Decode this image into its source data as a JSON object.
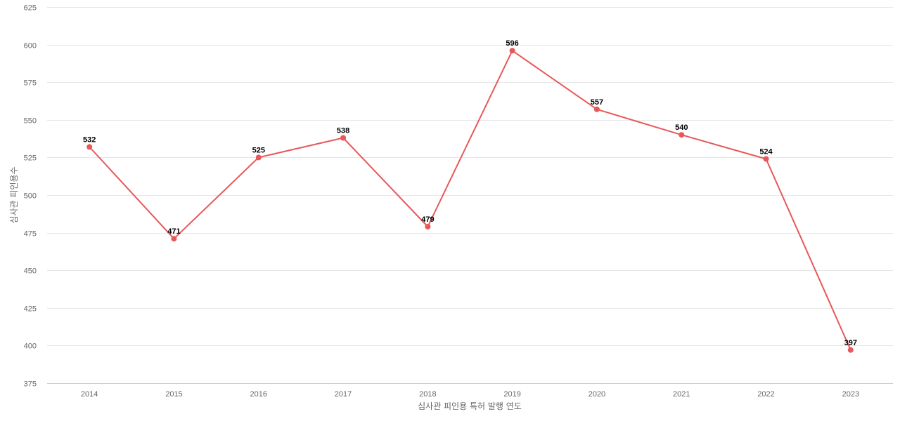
{
  "chart_data": {
    "type": "line",
    "title": "",
    "xlabel": "심사관 피인용 특허 발행 연도",
    "ylabel": "심사관 피인용수",
    "x": [
      "2014",
      "2015",
      "2016",
      "2017",
      "2018",
      "2019",
      "2020",
      "2021",
      "2022",
      "2023"
    ],
    "series": [
      {
        "values": [
          532,
          471,
          525,
          538,
          479,
          596,
          557,
          540,
          524,
          397
        ],
        "color": "#e8585a"
      }
    ],
    "ylim": [
      375,
      625
    ],
    "yticks": [
      375,
      400,
      425,
      450,
      475,
      500,
      525,
      550,
      575,
      600,
      625
    ],
    "grid": true,
    "legend": "none",
    "data_labels": true
  }
}
